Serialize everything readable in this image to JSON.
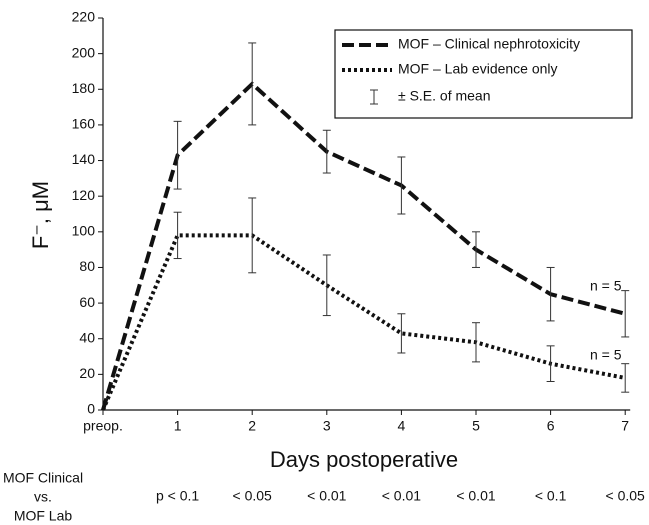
{
  "chart_data": {
    "type": "line",
    "categories": [
      "preop.",
      "1",
      "2",
      "3",
      "4",
      "5",
      "6",
      "7"
    ],
    "x_label": "Days postoperative",
    "y_label": "F⁻, μM",
    "ylim": [
      0,
      220
    ],
    "yticks": [
      0,
      20,
      40,
      60,
      80,
      100,
      120,
      140,
      160,
      180,
      200,
      220
    ],
    "series": [
      {
        "name": "MOF – Clinical nephrotoxicity",
        "color": "#111111",
        "style": "dashed",
        "values": [
          0,
          143,
          183,
          145,
          126,
          90,
          65,
          54
        ],
        "errors": [
          null,
          19,
          23,
          12,
          16,
          10,
          15,
          13
        ]
      },
      {
        "name": "MOF – Lab evidence only",
        "color": "#111111",
        "style": "dotted",
        "values": [
          0,
          98,
          98,
          70,
          43,
          38,
          26,
          18
        ],
        "errors": [
          null,
          13,
          21,
          17,
          11,
          11,
          10,
          8
        ]
      }
    ],
    "error_bar_label": "± S.E. of mean",
    "annotations": [
      "n = 5",
      "n = 5"
    ],
    "comparison": {
      "label": [
        "MOF Clinical",
        "vs.",
        "MOF Lab"
      ],
      "p_values": [
        null,
        "p < 0.1",
        "< 0.05",
        "< 0.01",
        "< 0.01",
        "< 0.01",
        "< 0.1",
        "< 0.05"
      ]
    }
  }
}
